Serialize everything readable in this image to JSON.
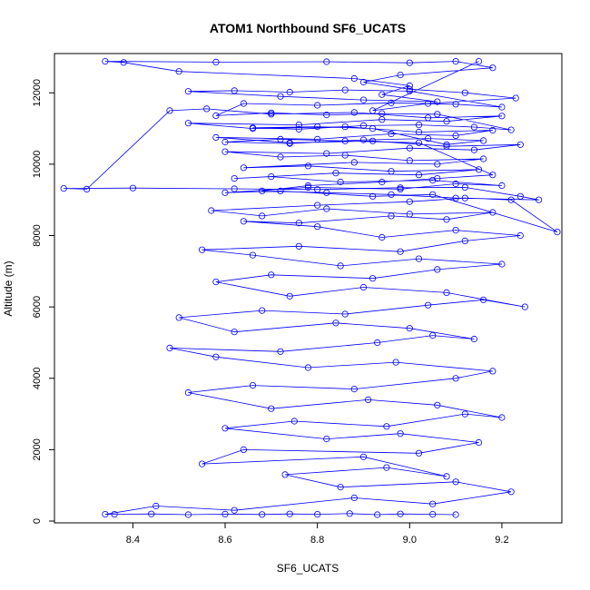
{
  "chart_data": {
    "type": "scatter",
    "title": "ATOM1 Northbound SF6_UCATS",
    "xlabel": "SF6_UCATS",
    "ylabel": "Altitude (m)",
    "xlim": [
      8.23,
      9.33
    ],
    "ylim": [
      -50,
      13100
    ],
    "x_ticks": [
      8.4,
      8.6,
      8.8,
      9.0,
      9.2
    ],
    "x_tick_labels": [
      "8.4",
      "8.6",
      "8.8",
      "9.0",
      "9.2"
    ],
    "y_ticks": [
      0,
      2000,
      4000,
      6000,
      8000,
      10000,
      12000
    ],
    "y_tick_labels": [
      "0",
      "2000",
      "4000",
      "6000",
      "8000",
      "10000",
      "12000"
    ],
    "grid": false,
    "legend": "none",
    "color": "#0000ff",
    "series": [
      {
        "style": "points-and-lines",
        "x": [
          9.1,
          9.05,
          8.98,
          8.93,
          8.87,
          8.8,
          8.74,
          8.68,
          8.6,
          8.52,
          8.44,
          8.36,
          8.34,
          8.45,
          8.62,
          8.88,
          9.05,
          9.22,
          9.1,
          8.85,
          8.73,
          8.95,
          9.08,
          8.9,
          8.55,
          8.64,
          9.02,
          9.15,
          8.98,
          8.82,
          8.6,
          8.75,
          8.95,
          9.12,
          9.2,
          9.06,
          8.91,
          8.7,
          8.52,
          8.66,
          8.88,
          9.1,
          9.18,
          8.97,
          8.78,
          8.58,
          8.48,
          8.72,
          8.93,
          9.05,
          9.14,
          9.0,
          8.84,
          8.62,
          8.5,
          8.68,
          8.86,
          9.04,
          9.16,
          9.25,
          9.08,
          8.9,
          8.74,
          8.58,
          8.7,
          8.92,
          9.06,
          9.2,
          9.02,
          8.85,
          8.66,
          8.55,
          8.76,
          8.98,
          9.12,
          9.24,
          9.1,
          8.94,
          8.8,
          8.64,
          8.76,
          8.96,
          9.08,
          9.18,
          9.0,
          8.82,
          8.68,
          8.57,
          8.8,
          9.0,
          9.12,
          9.22,
          9.32,
          9.05,
          8.92,
          8.72,
          8.6,
          8.78,
          8.98,
          9.1,
          9.2,
          9.05,
          8.85,
          8.7,
          8.62,
          8.84,
          9.02,
          9.15,
          8.96,
          8.78,
          8.64,
          8.88,
          9.06,
          9.16,
          9.0,
          8.86,
          8.72,
          8.6,
          8.82,
          9.0,
          9.14,
          9.24,
          9.08,
          8.92,
          8.74,
          8.58,
          8.8,
          8.96,
          9.1,
          9.18,
          9.02,
          8.86,
          8.66,
          8.52,
          8.76,
          8.94,
          9.08,
          9.2,
          9.04,
          8.88,
          8.7,
          8.56,
          8.48,
          8.3,
          8.25,
          8.4,
          8.62,
          8.8,
          8.98,
          9.12,
          9.24,
          9.28,
          9.1,
          8.96,
          8.82,
          8.68,
          8.78,
          8.94,
          9.06,
          9.18,
          9.02,
          8.86,
          8.72,
          8.6,
          8.74,
          8.9,
          9.04,
          9.16,
          9.08,
          8.92,
          8.8,
          8.66,
          8.76,
          8.9,
          9.02,
          9.14,
          9.22,
          9.06,
          8.94,
          8.82,
          8.7,
          8.58,
          8.64,
          8.8,
          8.96,
          9.1,
          9.2,
          9.0,
          8.86,
          8.74,
          8.62,
          8.52,
          8.72,
          8.9,
          9.06,
          8.94,
          9.0,
          8.88,
          8.5,
          8.38,
          8.34,
          8.58,
          8.82,
          9.0,
          9.1,
          9.18,
          8.98,
          8.9,
          9.0,
          9.12,
          9.23,
          9.04,
          8.92,
          9.15
        ],
        "y": [
          180,
          190,
          200,
          180,
          210,
          190,
          200,
          185,
          195,
          180,
          200,
          190,
          190,
          420,
          300,
          650,
          480,
          820,
          1100,
          950,
          1300,
          1500,
          1250,
          1800,
          1600,
          2000,
          1900,
          2200,
          2450,
          2300,
          2600,
          2800,
          2650,
          3000,
          2900,
          3250,
          3400,
          3150,
          3600,
          3800,
          3700,
          4000,
          4200,
          4450,
          4300,
          4600,
          4850,
          4750,
          5000,
          5200,
          5100,
          5400,
          5550,
          5300,
          5700,
          5900,
          5800,
          6050,
          6200,
          6000,
          6400,
          6550,
          6300,
          6700,
          6900,
          6800,
          7050,
          7200,
          7350,
          7150,
          7450,
          7600,
          7700,
          7550,
          7850,
          8000,
          8150,
          7950,
          8250,
          8400,
          8350,
          8550,
          8450,
          8650,
          8600,
          8750,
          8550,
          8700,
          8850,
          8950,
          9050,
          9000,
          8100,
          9150,
          9100,
          9250,
          9200,
          9350,
          9300,
          9450,
          9400,
          9550,
          9500,
          9650,
          9600,
          9750,
          9700,
          9850,
          9800,
          9950,
          9900,
          10050,
          10000,
          10150,
          10100,
          10250,
          10200,
          10350,
          10300,
          10450,
          10400,
          10550,
          10500,
          10650,
          10600,
          10750,
          10700,
          10850,
          10800,
          10950,
          10900,
          11050,
          11000,
          11150,
          11100,
          11250,
          11200,
          11350,
          11300,
          11450,
          11400,
          11550,
          11500,
          9300,
          9320,
          9330,
          9310,
          9290,
          9340,
          9350,
          9100,
          9000,
          9050,
          9150,
          9200,
          9250,
          9400,
          9500,
          9600,
          9700,
          10600,
          10650,
          10700,
          10620,
          10580,
          10680,
          10720,
          10660,
          10550,
          11000,
          11050,
          11020,
          10980,
          11080,
          11100,
          11040,
          10960,
          11400,
          11420,
          11380,
          11440,
          11360,
          11700,
          11650,
          11720,
          11680,
          11600,
          12050,
          12080,
          12020,
          12060,
          12040,
          11900,
          11800,
          11750,
          11950,
          12200,
          12400,
          12600,
          12850,
          12880,
          12860,
          12870,
          12840,
          12880,
          12700,
          12500,
          12300,
          12100,
          12000,
          11850,
          11700,
          11500,
          12880
        ]
      }
    ]
  }
}
